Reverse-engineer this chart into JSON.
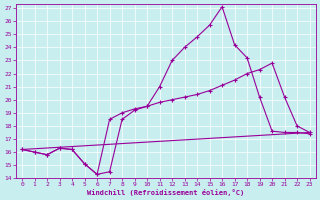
{
  "xlabel": "Windchill (Refroidissement éolien,°C)",
  "bg_color": "#c8eef0",
  "line_color": "#990099",
  "xlim": [
    -0.5,
    23.5
  ],
  "ylim": [
    14,
    27.3
  ],
  "yticks": [
    14,
    15,
    16,
    17,
    18,
    19,
    20,
    21,
    22,
    23,
    24,
    25,
    26,
    27
  ],
  "xticks": [
    0,
    1,
    2,
    3,
    4,
    5,
    6,
    7,
    8,
    9,
    10,
    11,
    12,
    13,
    14,
    15,
    16,
    17,
    18,
    19,
    20,
    21,
    22,
    23
  ],
  "line1_x": [
    0,
    1,
    2,
    3,
    4,
    5,
    6,
    7,
    8,
    9,
    10,
    11,
    12,
    13,
    14,
    15,
    16,
    17,
    18,
    19,
    20,
    21,
    22,
    23
  ],
  "line1_y": [
    16.2,
    16.0,
    15.8,
    16.3,
    16.2,
    15.1,
    14.3,
    14.5,
    18.5,
    19.2,
    19.5,
    21.0,
    23.0,
    24.0,
    24.8,
    25.7,
    27.1,
    24.2,
    23.2,
    20.2,
    17.6,
    17.5,
    17.5,
    17.4
  ],
  "line2_x": [
    0,
    1,
    2,
    3,
    4,
    5,
    6,
    7,
    8,
    9,
    10,
    11,
    12,
    13,
    14,
    15,
    16,
    17,
    18,
    19,
    20,
    21,
    22,
    23
  ],
  "line2_y": [
    16.2,
    16.0,
    15.8,
    16.3,
    16.2,
    15.1,
    14.3,
    18.5,
    19.0,
    19.3,
    19.5,
    19.8,
    20.0,
    20.2,
    20.4,
    20.7,
    21.1,
    21.5,
    22.0,
    22.3,
    22.8,
    20.2,
    18.0,
    17.5
  ],
  "line3_x": [
    0,
    23
  ],
  "line3_y": [
    16.2,
    17.5
  ]
}
